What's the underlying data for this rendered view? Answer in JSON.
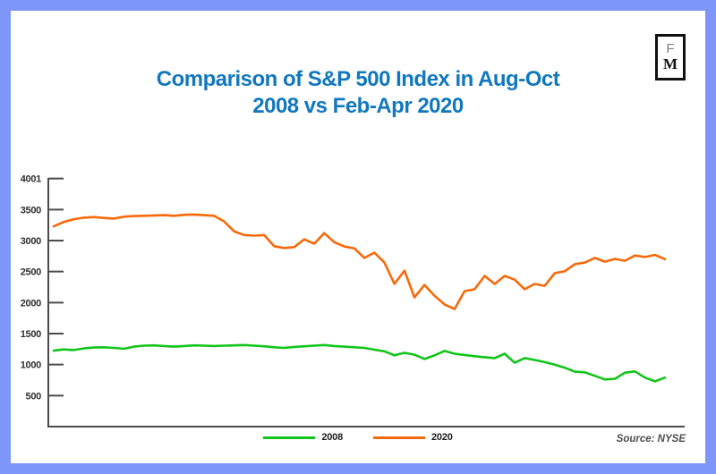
{
  "frame": {
    "border_color": "#7d96f7",
    "card_background": "#ffffff"
  },
  "logo": {
    "top_letter": "F",
    "bottom_letter": "M"
  },
  "title": {
    "line1": "Comparison of S&P 500 Index in Aug-Oct",
    "line2": "2008 vs Feb-Apr 2020",
    "color": "#1278be"
  },
  "legend": [
    {
      "label": "2008",
      "color": "#12c51b"
    },
    {
      "label": "2020",
      "color": "#f8690a"
    }
  ],
  "source": {
    "label": "Source: NYSE"
  },
  "chart_data": {
    "type": "line",
    "title": "Comparison of S&P 500 Index in Aug-Oct 2008 vs Feb-Apr 2020",
    "xlabel": "",
    "ylabel": "",
    "x_description": "Daily closes across the 3-month windows (no x-axis tick labels shown)",
    "ytick_labels": [
      "4001",
      "3500",
      "3000",
      "2500",
      "2000",
      "1500",
      "1000",
      "500"
    ],
    "ytick_values": [
      4001,
      3500,
      3000,
      2500,
      2000,
      1500,
      1000,
      500
    ],
    "ylim": [
      0,
      4010
    ],
    "grid": false,
    "legend_position": "bottom-center",
    "axis_color": "#4b4b4b",
    "tick_label_color": "#2f2f2f",
    "series": [
      {
        "name": "2008",
        "color": "#12c51b",
        "values": [
          1225,
          1245,
          1235,
          1260,
          1275,
          1280,
          1270,
          1255,
          1290,
          1305,
          1310,
          1300,
          1290,
          1300,
          1310,
          1305,
          1300,
          1305,
          1310,
          1315,
          1305,
          1295,
          1280,
          1270,
          1285,
          1295,
          1305,
          1315,
          1300,
          1290,
          1280,
          1270,
          1240,
          1215,
          1150,
          1190,
          1160,
          1090,
          1150,
          1220,
          1175,
          1155,
          1135,
          1120,
          1105,
          1175,
          1030,
          1105,
          1075,
          1040,
          1000,
          950,
          885,
          875,
          820,
          760,
          770,
          870,
          890,
          790,
          730,
          790
        ]
      },
      {
        "name": "2020",
        "color": "#f8690a",
        "values": [
          3230,
          3300,
          3345,
          3370,
          3380,
          3365,
          3355,
          3385,
          3395,
          3400,
          3405,
          3410,
          3400,
          3415,
          3420,
          3410,
          3400,
          3310,
          3150,
          3090,
          3080,
          3090,
          2910,
          2880,
          2895,
          3020,
          2950,
          3120,
          2975,
          2905,
          2875,
          2720,
          2805,
          2645,
          2300,
          2515,
          2085,
          2285,
          2110,
          1970,
          1895,
          2185,
          2215,
          2430,
          2300,
          2430,
          2370,
          2215,
          2300,
          2270,
          2475,
          2505,
          2620,
          2645,
          2720,
          2660,
          2705,
          2675,
          2760,
          2735,
          2770,
          2700
        ]
      }
    ],
    "source": "Source: NYSE"
  }
}
